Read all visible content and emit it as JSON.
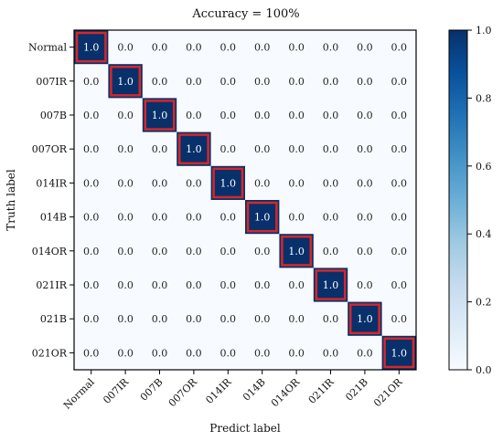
{
  "chart_data": {
    "type": "heatmap",
    "title": "Accuracy = 100%",
    "xlabel": "Predict label",
    "ylabel": "Truth label",
    "x_categories": [
      "Normal",
      "007IR",
      "007B",
      "007OR",
      "014IR",
      "014B",
      "014OR",
      "021IR",
      "021B",
      "021OR"
    ],
    "y_categories": [
      "Normal",
      "007IR",
      "007B",
      "007OR",
      "014IR",
      "014B",
      "014OR",
      "021IR",
      "021B",
      "021OR"
    ],
    "values": [
      [
        1.0,
        0.0,
        0.0,
        0.0,
        0.0,
        0.0,
        0.0,
        0.0,
        0.0,
        0.0
      ],
      [
        0.0,
        1.0,
        0.0,
        0.0,
        0.0,
        0.0,
        0.0,
        0.0,
        0.0,
        0.0
      ],
      [
        0.0,
        0.0,
        1.0,
        0.0,
        0.0,
        0.0,
        0.0,
        0.0,
        0.0,
        0.0
      ],
      [
        0.0,
        0.0,
        0.0,
        1.0,
        0.0,
        0.0,
        0.0,
        0.0,
        0.0,
        0.0
      ],
      [
        0.0,
        0.0,
        0.0,
        0.0,
        1.0,
        0.0,
        0.0,
        0.0,
        0.0,
        0.0
      ],
      [
        0.0,
        0.0,
        0.0,
        0.0,
        0.0,
        1.0,
        0.0,
        0.0,
        0.0,
        0.0
      ],
      [
        0.0,
        0.0,
        0.0,
        0.0,
        0.0,
        0.0,
        1.0,
        0.0,
        0.0,
        0.0
      ],
      [
        0.0,
        0.0,
        0.0,
        0.0,
        0.0,
        0.0,
        0.0,
        1.0,
        0.0,
        0.0
      ],
      [
        0.0,
        0.0,
        0.0,
        0.0,
        0.0,
        0.0,
        0.0,
        0.0,
        1.0,
        0.0
      ],
      [
        0.0,
        0.0,
        0.0,
        0.0,
        0.0,
        0.0,
        0.0,
        0.0,
        0.0,
        1.0
      ]
    ],
    "value_format_decimals": 1,
    "colorbar": {
      "range": [
        0.0,
        1.0
      ],
      "ticks": [
        "0.0",
        "0.2",
        "0.4",
        "0.6",
        "0.8",
        "1.0"
      ],
      "colormap": "Blues",
      "low_color": "#f7fbff",
      "high_color": "#08306b"
    },
    "highlight_diagonal": true,
    "highlight_color": "#d62728",
    "grid": false
  }
}
